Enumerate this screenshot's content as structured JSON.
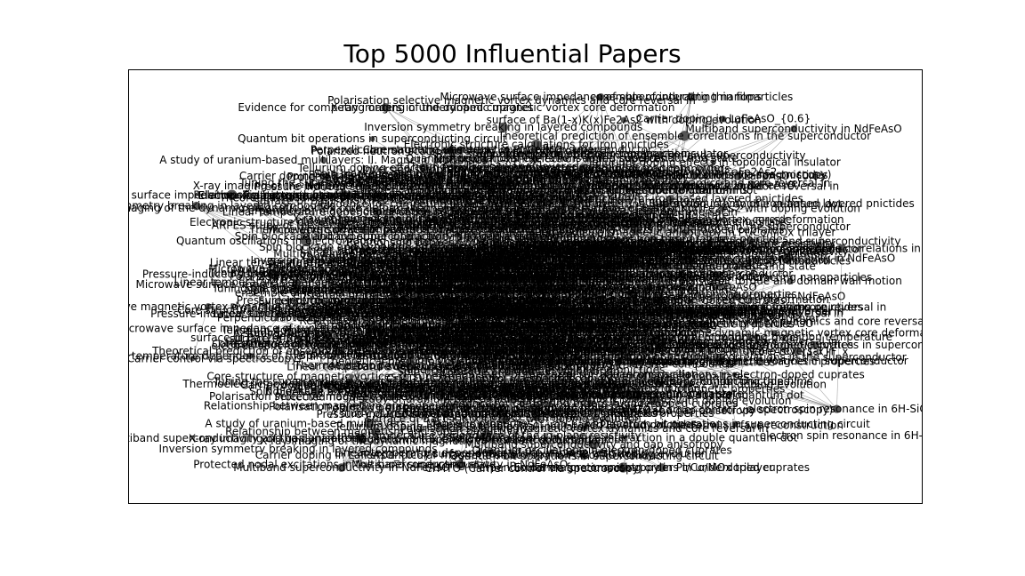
{
  "chart_data": {
    "type": "network",
    "title": "Top 5000 Influential Papers",
    "xlabel": "",
    "ylabel": "",
    "grid": false,
    "legend": "none",
    "colors": {
      "node": "#555555",
      "edge": "#000000",
      "text": "#000000"
    },
    "nodes": [
      "Polarisation selective magnetic vortex dynamics and core reversal in",
      "X-ray imaging of the dynamic magnetic vortex core deformation",
      "Linear temperature dependence of the in-plane resistivity",
      "Evidence for competing orders in underdoped cuprates",
      "Microwave surface impedance of superconducting thin films",
      "Spin blockade and hyperfine interaction in a double quantum dot",
      "surface of Ba(1-x)K(x)Fe2As2 with doping evolution",
      "NdFeAsO_{1-x}F_x",
      "Core structure of magnetic vortices in superconductor",
      "Multiband superconductivity in NdFeAsO",
      "Theoretical prediction of ensemble correlations in the superconductor",
      "Superconductivity of iron-based layered pnictides",
      "Multiband superconductivity and gap anisotropy",
      "Inversion symmetry breaking in layered compounds",
      "Protected nodal excitations in the superconducting state",
      "Carrier doping in LaFeAsO_{0.6}",
      "Perpendicular magnetic anisotropy in Pt/Co/MOx trilayer",
      "electron spin resonance in 6H-SiC",
      "A study of uranium-based multilayers: II. Magnetic properties",
      "ensemble of interacting nanoparticles",
      "CrMTO (Carrier control via spectroscopy)",
      "Spin-orbit torque and domain wall motion",
      "Quantum bit operations in superconducting circuit",
      "Tellurium doping effects in topological insulator",
      "Tuning the superconducting transition temperature",
      "Polarized neutron scattering study of magnetic order",
      "Electronic structure calculations for iron pnictides",
      "Thermoelectric power of layered cobaltates",
      "Quantum oscillations in electron-doped cuprates",
      "Pressure-induced superconductivity in CaFe2As2",
      "Relationship between magnetism and superconductivity",
      "ARPES study of the Fermi surface reconstruction"
    ]
  }
}
